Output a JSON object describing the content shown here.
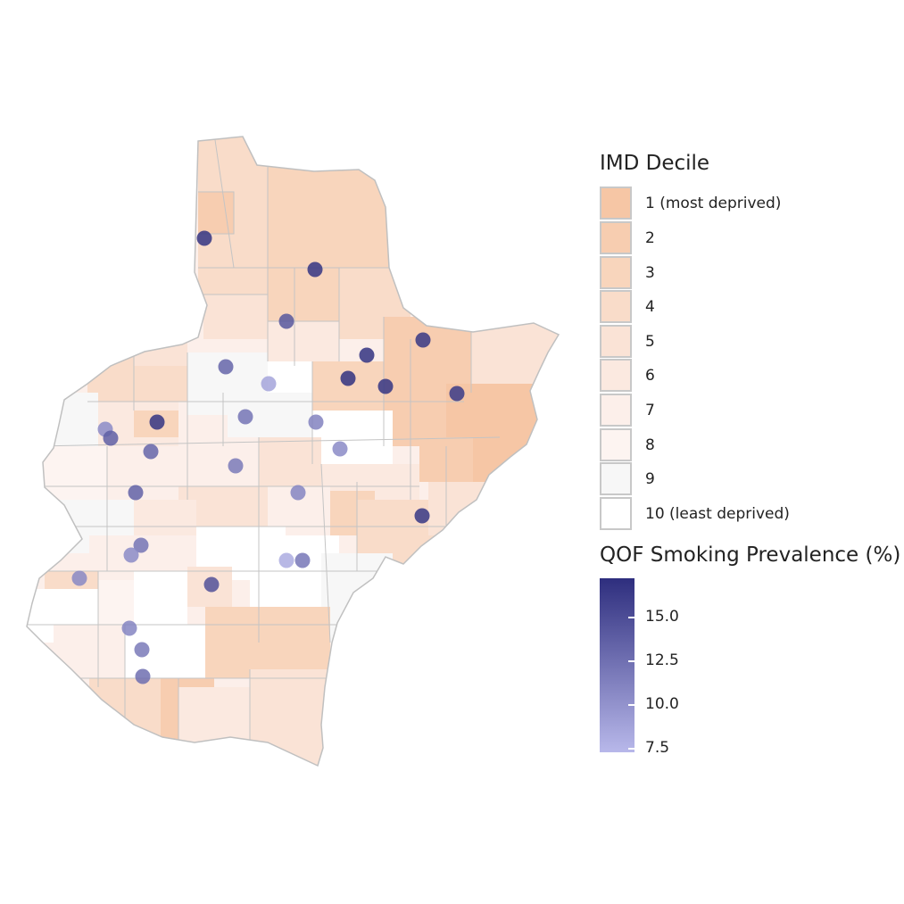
{
  "map": {
    "deciles": [
      {
        "decile": 1,
        "color": "#f6c6a5"
      },
      {
        "decile": 2,
        "color": "#f7cdb0"
      },
      {
        "decile": 3,
        "color": "#f8d5bc"
      },
      {
        "decile": 4,
        "color": "#f9dcc9"
      },
      {
        "decile": 5,
        "color": "#fae3d6"
      },
      {
        "decile": 6,
        "color": "#fbe9e0"
      },
      {
        "decile": 7,
        "color": "#fcefea"
      },
      {
        "decile": 8,
        "color": "#fdf4f1"
      },
      {
        "decile": 9,
        "color": "#f7f7f7"
      },
      {
        "decile": 10,
        "color": "#ffffff"
      }
    ],
    "boundary_color": "#bdbdbd",
    "point_color_scale": {
      "low": "#b8b8ea",
      "high": "#2e2e7e",
      "min": 7.5,
      "max": 17
    }
  },
  "legend": {
    "imd": {
      "title": "IMD Decile",
      "items": [
        {
          "label": "1 (most deprived)",
          "color": "#f6c6a5"
        },
        {
          "label": "2",
          "color": "#f7cdb0"
        },
        {
          "label": "3",
          "color": "#f8d5bc"
        },
        {
          "label": "4",
          "color": "#f9dcc9"
        },
        {
          "label": "5",
          "color": "#fae3d6"
        },
        {
          "label": "6",
          "color": "#fbe9e0"
        },
        {
          "label": "7",
          "color": "#fcefea"
        },
        {
          "label": "8",
          "color": "#fdf4f1"
        },
        {
          "label": "9",
          "color": "#f7f7f7"
        },
        {
          "label": "10 (least deprived)",
          "color": "#ffffff"
        }
      ]
    },
    "smoking": {
      "title": "QOF Smoking Prevalence (%)",
      "ticks": [
        "15.0",
        "12.5",
        "10.0",
        "7.5"
      ],
      "tick_values": [
        15.0,
        12.5,
        10.0,
        7.5
      ],
      "min": 7.5,
      "max": 17,
      "color_low": "#b8b8ea",
      "color_high": "#2e2e7e"
    }
  }
}
